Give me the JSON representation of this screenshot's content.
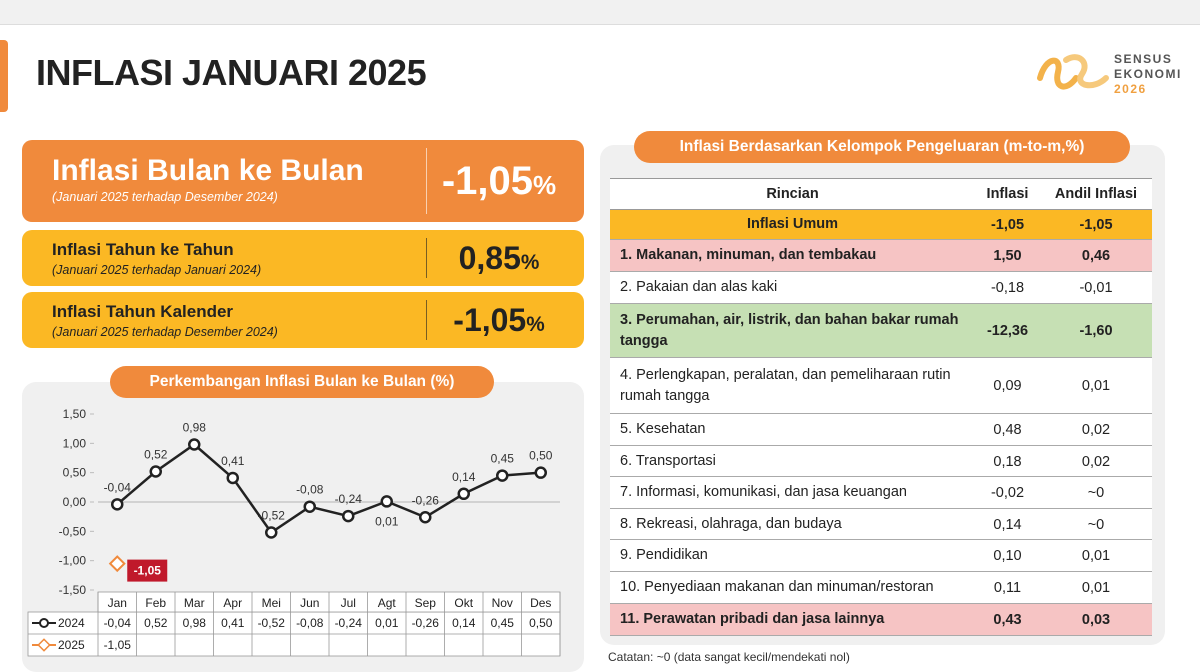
{
  "header": {
    "title": "INFLASI JANUARI 2025"
  },
  "logo": {
    "line1": "SENSUS",
    "line2": "EKONOMI",
    "line3": "2026"
  },
  "cards": [
    {
      "title": "Inflasi Bulan ke Bulan",
      "subtitle": "(Januari 2025 terhadap Desember 2024)",
      "value": "-1,05",
      "unit": "%",
      "color": "#f08a3c"
    },
    {
      "title": "Inflasi Tahun ke Tahun",
      "subtitle": "(Januari 2025 terhadap Januari 2024)",
      "value": "0,85",
      "unit": "%",
      "color": "#fbb824"
    },
    {
      "title": "Inflasi Tahun Kalender",
      "subtitle": "(Januari 2025 terhadap Desember 2024)",
      "value": "-1,05",
      "unit": "%",
      "color": "#fbb824"
    }
  ],
  "chart_data": {
    "type": "line",
    "title": "Perkembangan Inflasi Bulan ke Bulan (%)",
    "categories": [
      "Jan",
      "Feb",
      "Mar",
      "Apr",
      "Mei",
      "Jun",
      "Jul",
      "Agt",
      "Sep",
      "Okt",
      "Nov",
      "Des"
    ],
    "series": [
      {
        "name": "2024",
        "color": "#222222",
        "values": [
          -0.04,
          0.52,
          0.98,
          0.41,
          -0.52,
          -0.08,
          -0.24,
          0.01,
          -0.26,
          0.14,
          0.45,
          0.5
        ],
        "value_labels": [
          "-0,04",
          "0,52",
          "0,98",
          "0,41",
          "-0,52",
          "-0,08",
          "-0,24",
          "0,01",
          "-0,26",
          "0,14",
          "0,45",
          "0,50"
        ]
      },
      {
        "name": "2025",
        "color": "#f08a3c",
        "values": [
          -1.05,
          null,
          null,
          null,
          null,
          null,
          null,
          null,
          null,
          null,
          null,
          null
        ],
        "value_labels": [
          "-1,05",
          null,
          null,
          null,
          null,
          null,
          null,
          null,
          null,
          null,
          null,
          null
        ]
      }
    ],
    "ylim": [
      -1.5,
      1.5
    ],
    "yticks": [
      {
        "value": 1.5,
        "label": "1,50"
      },
      {
        "value": 1,
        "label": "1,00"
      },
      {
        "value": 0.5,
        "label": "0,50"
      },
      {
        "value": 0,
        "label": "0,00"
      },
      {
        "value": -0.5,
        "label": "-0,50"
      },
      {
        "value": -1,
        "label": "-1,00"
      },
      {
        "value": -1.5,
        "label": "-1,50"
      }
    ],
    "grid": false
  },
  "table": {
    "title": "Inflasi Berdasarkan Kelompok Pengeluaran (m-to-m,%)",
    "columns": [
      "Rincian",
      "Inflasi",
      "Andil Inflasi"
    ],
    "rows": [
      {
        "label": "Inflasi Umum",
        "inflasi": "-1,05",
        "andil": "-1,05",
        "color": "#fbb824"
      },
      {
        "label": "1. Makanan, minuman, dan tembakau",
        "inflasi": "1,50",
        "andil": "0,46",
        "color": "#f6c4c4"
      },
      {
        "label": "2. Pakaian dan alas kaki",
        "inflasi": "-0,18",
        "andil": "-0,01",
        "color": "#ffffff"
      },
      {
        "label": "3. Perumahan, air, listrik, dan bahan bakar rumah tangga",
        "inflasi": "-12,36",
        "andil": "-1,60",
        "color": "#c6e0b4"
      },
      {
        "label": "4. Perlengkapan, peralatan, dan pemeliharaan rutin rumah tangga",
        "inflasi": "0,09",
        "andil": "0,01",
        "color": "#ffffff"
      },
      {
        "label": "5. Kesehatan",
        "inflasi": "0,48",
        "andil": "0,02",
        "color": "#ffffff"
      },
      {
        "label": "6. Transportasi",
        "inflasi": "0,18",
        "andil": "0,02",
        "color": "#ffffff"
      },
      {
        "label": "7. Informasi, komunikasi, dan jasa keuangan",
        "inflasi": "-0,02",
        "andil": "~0",
        "color": "#ffffff"
      },
      {
        "label": "8. Rekreasi, olahraga, dan budaya",
        "inflasi": "0,14",
        "andil": "~0",
        "color": "#ffffff"
      },
      {
        "label": "9. Pendidikan",
        "inflasi": "0,10",
        "andil": "0,01",
        "color": "#ffffff"
      },
      {
        "label": "10. Penyediaan makanan dan minuman/restoran",
        "inflasi": "0,11",
        "andil": "0,01",
        "color": "#ffffff"
      },
      {
        "label": "11. Perawatan pribadi dan jasa lainnya",
        "inflasi": "0,43",
        "andil": "0,03",
        "color": "#f6c4c4"
      }
    ]
  },
  "note": "Catatan: ~0 (data sangat kecil/mendekati nol)"
}
